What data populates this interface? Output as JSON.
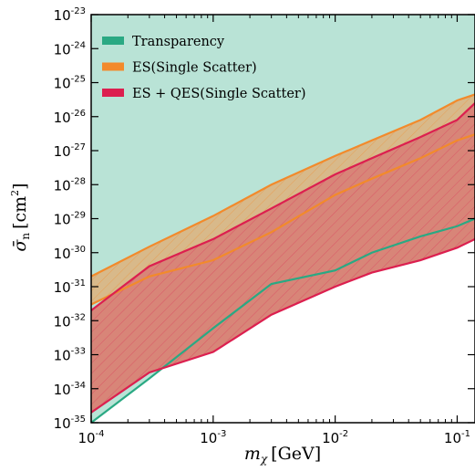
{
  "chart_data": {
    "type": "area",
    "title": "",
    "xlabel": {
      "main": "m",
      "sub": "χ",
      "unit": "[GeV]"
    },
    "ylabel": {
      "main": "σ̄",
      "sub": "n",
      "unit_base": "[cm",
      "unit_exp": "2",
      "unit_close": "]"
    },
    "x_scale": "log",
    "y_scale": "log",
    "xlim": [
      0.0001,
      0.14
    ],
    "ylim": [
      1e-35,
      1e-23
    ],
    "x_ticks": [
      {
        "value": 0.0001,
        "base": "10",
        "exp": "-4"
      },
      {
        "value": 0.001,
        "base": "10",
        "exp": "-3"
      },
      {
        "value": 0.01,
        "base": "10",
        "exp": "-2"
      },
      {
        "value": 0.1,
        "base": "10",
        "exp": "-1"
      }
    ],
    "y_ticks": [
      {
        "value": 1e-35,
        "base": "10",
        "exp": "-35"
      },
      {
        "value": 1e-34,
        "base": "10",
        "exp": "-34"
      },
      {
        "value": 1e-33,
        "base": "10",
        "exp": "-33"
      },
      {
        "value": 1e-32,
        "base": "10",
        "exp": "-32"
      },
      {
        "value": 1e-31,
        "base": "10",
        "exp": "-31"
      },
      {
        "value": 1e-30,
        "base": "10",
        "exp": "-30"
      },
      {
        "value": 1e-29,
        "base": "10",
        "exp": "-29"
      },
      {
        "value": 1e-28,
        "base": "10",
        "exp": "-28"
      },
      {
        "value": 1e-27,
        "base": "10",
        "exp": "-27"
      },
      {
        "value": 1e-26,
        "base": "10",
        "exp": "-26"
      },
      {
        "value": 1e-25,
        "base": "10",
        "exp": "-25"
      },
      {
        "value": 1e-24,
        "base": "10",
        "exp": "-24"
      },
      {
        "value": 1e-23,
        "base": "10",
        "exp": "-23"
      }
    ],
    "grid": false,
    "legend_position": "top-left",
    "series": [
      {
        "name": "Transparency",
        "color": "#2aa983",
        "fill": "#b9e3d6",
        "hatch": false,
        "lower": {
          "x": [
            0.0001,
            0.0003,
            0.001,
            0.003,
            0.01,
            0.02,
            0.05,
            0.1,
            0.14
          ],
          "y": [
            1e-35,
            2e-34,
            6e-33,
            1.2e-31,
            3e-31,
            1e-30,
            3e-30,
            6e-30,
            1e-29
          ]
        },
        "upper": {
          "x": [
            0.0001,
            0.14
          ],
          "y": [
            1e-23,
            1e-23
          ]
        }
      },
      {
        "name": "ES(Single Scatter)",
        "color": "#f28a2b",
        "fill": "#d8b98a",
        "hatch": true,
        "lower": {
          "x": [
            0.0001,
            0.0003,
            0.001,
            0.003,
            0.01,
            0.02,
            0.05,
            0.1,
            0.14
          ],
          "y": [
            3e-32,
            2e-31,
            6e-31,
            4e-30,
            5e-29,
            1.5e-28,
            6e-28,
            2e-27,
            3e-27
          ]
        },
        "upper": {
          "x": [
            0.0001,
            0.0003,
            0.001,
            0.003,
            0.01,
            0.02,
            0.05,
            0.1,
            0.14
          ],
          "y": [
            2e-31,
            1.5e-30,
            1.2e-29,
            1e-28,
            7e-28,
            2e-27,
            8e-27,
            3e-26,
            4.5e-26
          ]
        }
      },
      {
        "name": "ES + QES(Single Scatter)",
        "color": "#dc1f4f",
        "fill": "#d88578",
        "hatch": true,
        "lower": {
          "x": [
            0.0001,
            0.0003,
            0.001,
            0.003,
            0.01,
            0.02,
            0.05,
            0.1,
            0.14
          ],
          "y": [
            2e-35,
            3e-34,
            1.2e-33,
            1.5e-32,
            1e-31,
            2.6e-31,
            6e-31,
            1.4e-30,
            2.5e-30
          ]
        },
        "upper": {
          "x": [
            0.0001,
            0.0003,
            0.001,
            0.003,
            0.01,
            0.02,
            0.05,
            0.1,
            0.14
          ],
          "y": [
            2e-32,
            4e-31,
            2.5e-30,
            2e-29,
            2e-28,
            6e-28,
            2.5e-27,
            8e-27,
            2.5e-26
          ]
        }
      }
    ]
  }
}
